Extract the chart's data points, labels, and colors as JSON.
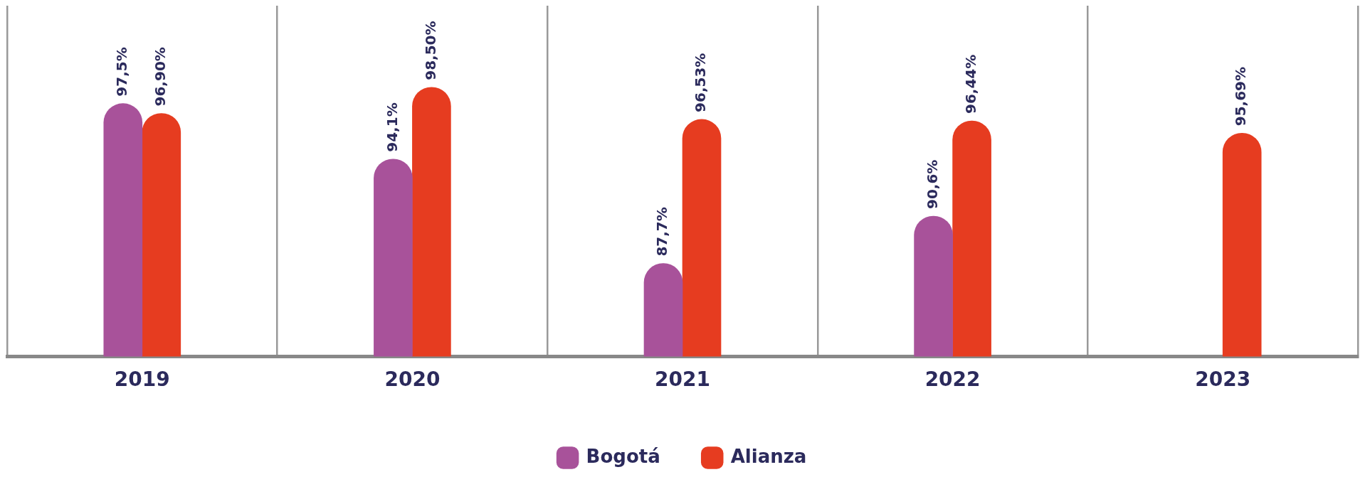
{
  "chart_data": {
    "type": "bar",
    "categories": [
      "2019",
      "2020",
      "2021",
      "2022",
      "2023"
    ],
    "series": [
      {
        "name": "Bogotá",
        "color": "#a8529a",
        "values": [
          97.5,
          94.1,
          87.7,
          90.6,
          null
        ],
        "value_labels": [
          "97,5%",
          "94,1%",
          "87,7%",
          "90,6%",
          null
        ]
      },
      {
        "name": "Alianza",
        "color": "#e63c20",
        "values": [
          96.9,
          98.5,
          96.53,
          96.44,
          95.69
        ],
        "value_labels": [
          "96,90%",
          "98,50%",
          "96,53%",
          "96,44%",
          "95,69%"
        ]
      }
    ],
    "ylim": [
      82,
      103.5
    ],
    "tick_labels": "x",
    "grid": "x",
    "legend": "bottom"
  }
}
